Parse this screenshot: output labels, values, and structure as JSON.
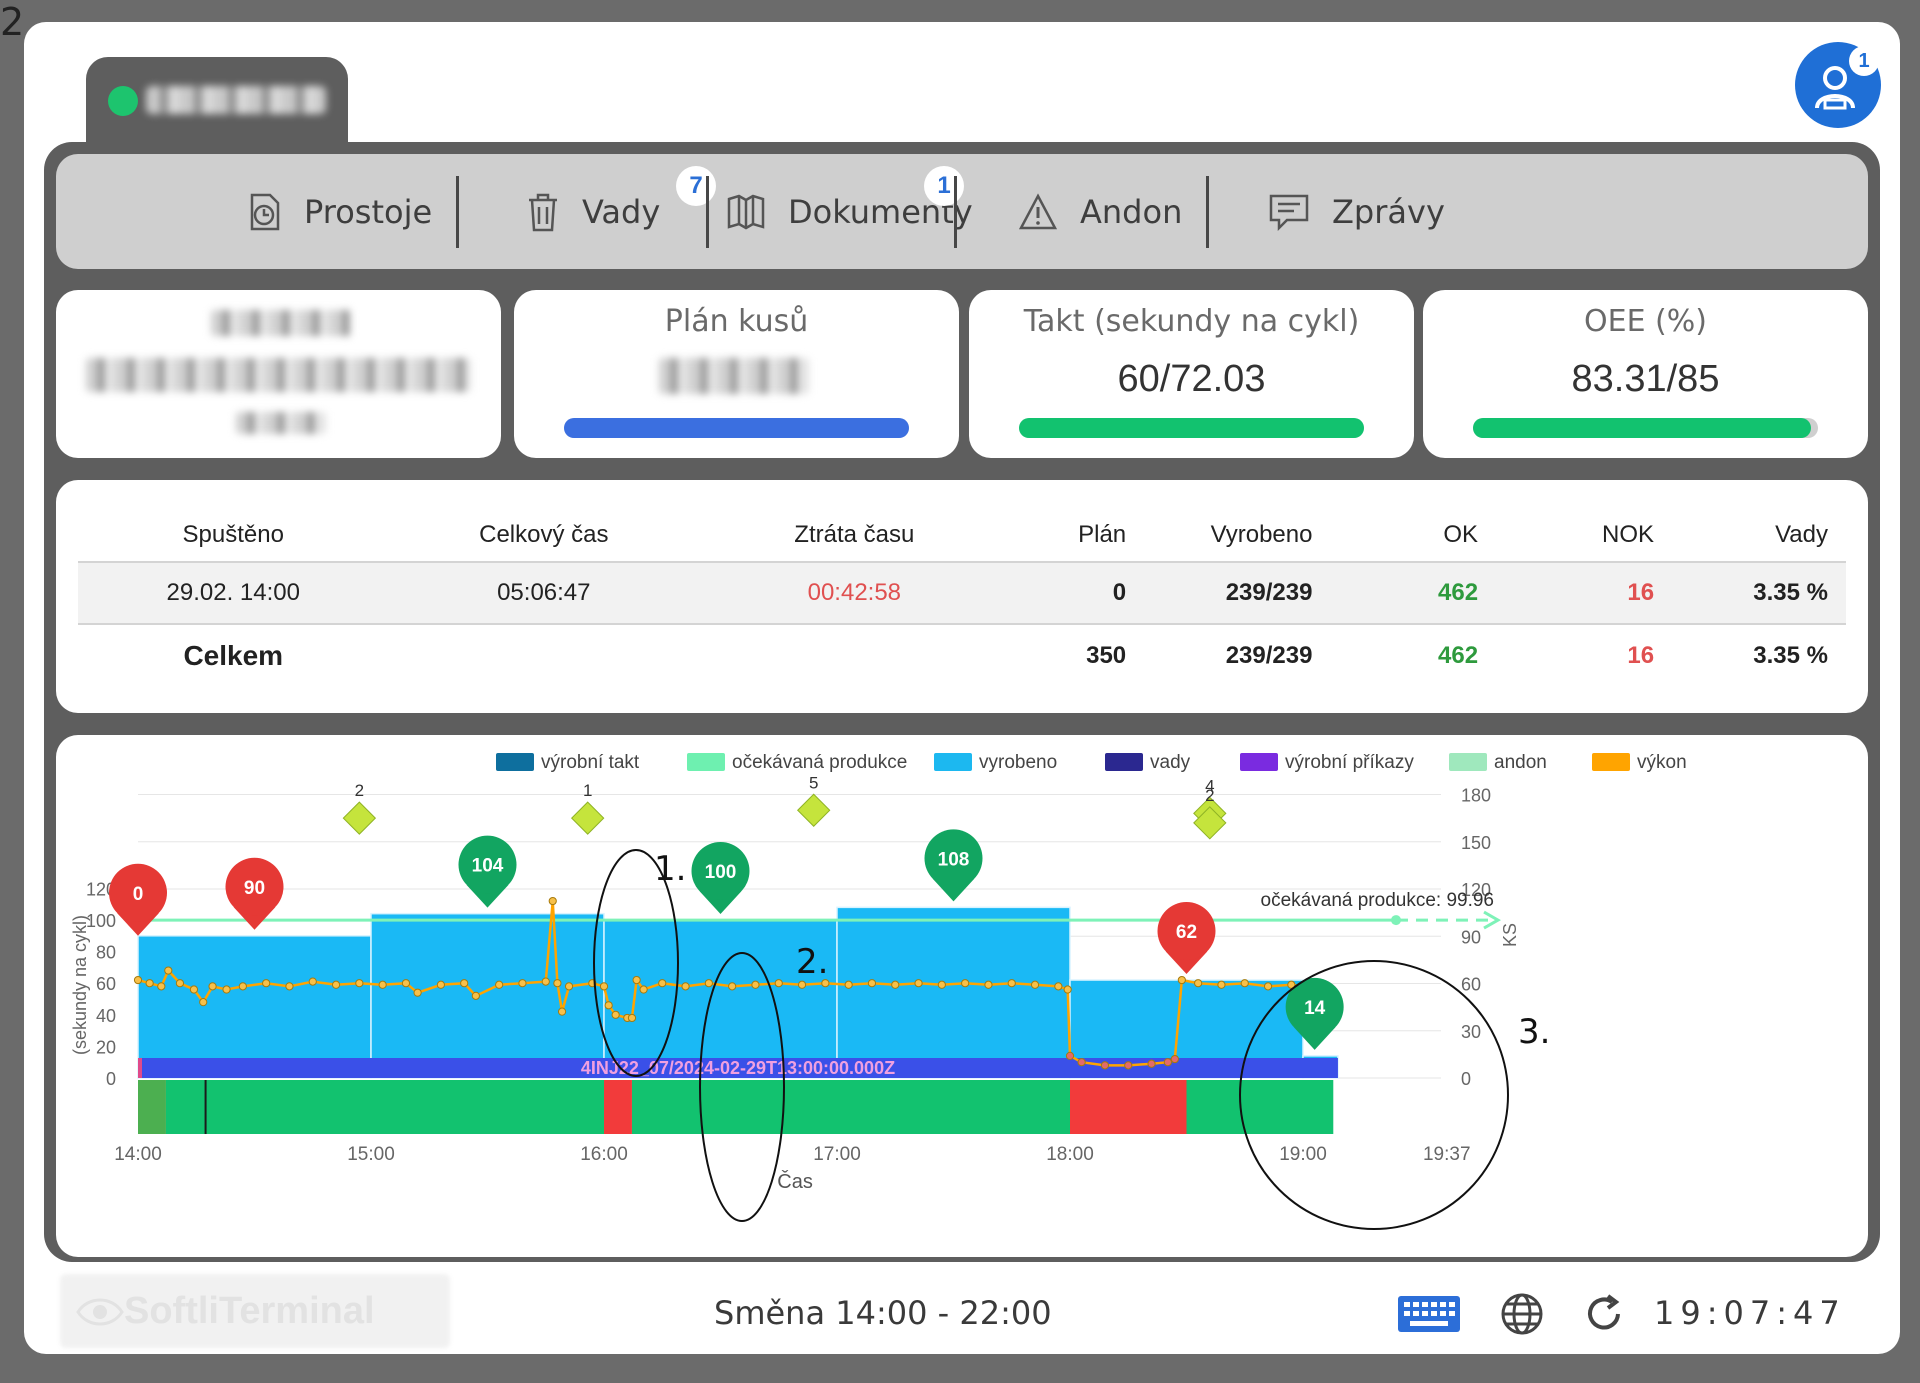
{
  "corner_text": "2",
  "user": {
    "badge": "1"
  },
  "menu": [
    {
      "label": "Prostoje",
      "icon": "clock-doc-icon"
    },
    {
      "label": "Vady",
      "icon": "trash-icon",
      "badge": "7"
    },
    {
      "label": "Dokumenty",
      "icon": "book-icon",
      "badge": "1"
    },
    {
      "label": "Andon",
      "icon": "warning-icon"
    },
    {
      "label": "Zprávy",
      "icon": "message-icon"
    }
  ],
  "kpi": {
    "plan_title": "Plán kusů",
    "plan_progress": 1.0,
    "takt_title": "Takt (sekundy na cykl)",
    "takt_value": "60/72.03",
    "takt_progress": 1.0,
    "oee_title": "OEE (%)",
    "oee_value": "83.31/85",
    "oee_progress": 0.98,
    "colors": {
      "plan_bar": "#3b6fe0",
      "green_bar": "#12c26f"
    }
  },
  "table": {
    "headers": [
      "Spuštěno",
      "Celkový čas",
      "Ztráta času",
      "Plán",
      "Vyrobeno",
      "OK",
      "NOK",
      "Vady"
    ],
    "row": [
      "29.02. 14:00",
      "05:06:47",
      "00:42:58",
      "0",
      "239/239",
      "462",
      "16",
      "3.35 %"
    ],
    "total_label": "Celkem",
    "total": [
      "350",
      "239/239",
      "462",
      "16",
      "3.35 %"
    ]
  },
  "chart_data": {
    "type": "bar",
    "xlabel": "Čas",
    "ylabel_left": "(sekundy na cykl)",
    "ylabel_right": "KS",
    "x_ticks": [
      "14:00",
      "15:00",
      "16:00",
      "17:00",
      "18:00",
      "19:00",
      "19:37"
    ],
    "y_left_ticks": [
      0,
      20,
      40,
      60,
      80,
      100,
      120
    ],
    "y_right_ticks": [
      0,
      30,
      60,
      90,
      120,
      150,
      180
    ],
    "legend": [
      {
        "name": "výrobní takt",
        "color": "#0e6f9e"
      },
      {
        "name": "očekávaná produkce",
        "color": "#6ef0b0"
      },
      {
        "name": "vyrobeno",
        "color": "#1cb8f0"
      },
      {
        "name": "vady",
        "color": "#2b2890"
      },
      {
        "name": "výrobní příkazy",
        "color": "#7a2be0"
      },
      {
        "name": "andon",
        "color": "#9fe8bd"
      },
      {
        "name": "výkon",
        "color": "#ffa400"
      }
    ],
    "hourly_bars": [
      {
        "start_h": 0,
        "end_h": 1,
        "value": 90
      },
      {
        "start_h": 1,
        "end_h": 2,
        "value": 104
      },
      {
        "start_h": 2,
        "end_h": 3,
        "value": 100
      },
      {
        "start_h": 3,
        "end_h": 4,
        "value": 108
      },
      {
        "start_h": 4,
        "end_h": 5,
        "value": 62
      },
      {
        "start_h": 5,
        "end_h": 5.15,
        "value": 14
      }
    ],
    "hour_markers": [
      {
        "h": 0,
        "label": "0",
        "color": "#e53935"
      },
      {
        "h": 0.5,
        "label": "90",
        "color": "#e53935"
      },
      {
        "h": 1.5,
        "label": "104",
        "color": "#12a561"
      },
      {
        "h": 2.5,
        "label": "100",
        "color": "#12a561"
      },
      {
        "h": 3.5,
        "label": "108",
        "color": "#12a561"
      },
      {
        "h": 4.5,
        "label": "62",
        "color": "#e53935"
      },
      {
        "h": 5.05,
        "label": "14",
        "color": "#12a561"
      }
    ],
    "expected_production": {
      "label": "očekávaná produkce: 99.96",
      "value": 99.96
    },
    "order_label": "4INJ22_07/2024-02-29T13:00:00.000Z",
    "defect_diamonds": [
      {
        "h": 0.95,
        "count": "2",
        "ks": 165
      },
      {
        "h": 1.93,
        "count": "1",
        "ks": 165
      },
      {
        "h": 2.9,
        "count": "5",
        "ks": 170
      },
      {
        "h": 4.6,
        "count": "4",
        "ks": 168
      },
      {
        "h": 4.6,
        "count": "2",
        "ks": 162
      }
    ],
    "status_segments": [
      {
        "start_h": 0,
        "end_h": 0.12,
        "color": "#4caf50"
      },
      {
        "start_h": 0.12,
        "end_h": 2.0,
        "color": "#12c26f"
      },
      {
        "start_h": 2.0,
        "end_h": 2.12,
        "color": "#f23b3b"
      },
      {
        "start_h": 2.12,
        "end_h": 4.0,
        "color": "#12c26f"
      },
      {
        "start_h": 4.0,
        "end_h": 4.5,
        "color": "#f23b3b"
      },
      {
        "start_h": 4.5,
        "end_h": 5.13,
        "color": "#12c26f"
      }
    ],
    "annotations": [
      "1.",
      "2.",
      "3."
    ],
    "takt_series": [
      [
        0.0,
        62
      ],
      [
        0.05,
        60
      ],
      [
        0.1,
        58
      ],
      [
        0.13,
        68
      ],
      [
        0.18,
        60
      ],
      [
        0.24,
        56
      ],
      [
        0.28,
        48
      ],
      [
        0.32,
        58
      ],
      [
        0.38,
        56
      ],
      [
        0.45,
        58
      ],
      [
        0.55,
        60
      ],
      [
        0.65,
        58
      ],
      [
        0.75,
        61
      ],
      [
        0.85,
        59
      ],
      [
        0.95,
        60
      ],
      [
        1.05,
        59
      ],
      [
        1.15,
        60
      ],
      [
        1.2,
        54
      ],
      [
        1.3,
        59
      ],
      [
        1.4,
        60
      ],
      [
        1.45,
        52
      ],
      [
        1.55,
        59
      ],
      [
        1.65,
        60
      ],
      [
        1.75,
        61
      ],
      [
        1.78,
        112
      ],
      [
        1.8,
        60
      ],
      [
        1.82,
        42
      ],
      [
        1.85,
        58
      ],
      [
        1.95,
        60
      ],
      [
        2.0,
        58
      ],
      [
        2.02,
        46
      ],
      [
        2.05,
        40
      ],
      [
        2.1,
        38
      ],
      [
        2.12,
        38
      ],
      [
        2.14,
        62
      ],
      [
        2.17,
        56
      ],
      [
        2.25,
        60
      ],
      [
        2.35,
        58
      ],
      [
        2.45,
        60
      ],
      [
        2.55,
        58
      ],
      [
        2.65,
        59
      ],
      [
        2.75,
        60
      ],
      [
        2.85,
        59
      ],
      [
        2.95,
        60
      ],
      [
        3.05,
        59
      ],
      [
        3.15,
        60
      ],
      [
        3.25,
        59
      ],
      [
        3.35,
        60
      ],
      [
        3.45,
        59
      ],
      [
        3.55,
        60
      ],
      [
        3.65,
        59
      ],
      [
        3.75,
        60
      ],
      [
        3.85,
        59
      ],
      [
        3.95,
        58
      ],
      [
        3.99,
        56
      ],
      [
        4.0,
        14
      ],
      [
        4.05,
        10
      ],
      [
        4.15,
        8
      ],
      [
        4.25,
        8
      ],
      [
        4.35,
        9
      ],
      [
        4.42,
        10
      ],
      [
        4.45,
        12
      ],
      [
        4.48,
        62
      ],
      [
        4.55,
        60
      ],
      [
        4.65,
        59
      ],
      [
        4.75,
        60
      ],
      [
        4.85,
        58
      ],
      [
        4.95,
        59
      ],
      [
        5.05,
        57
      ]
    ]
  },
  "footer": {
    "brand": "SoftliTerminal",
    "shift": "Směna 14:00 - 22:00",
    "time": "19:07:47"
  }
}
